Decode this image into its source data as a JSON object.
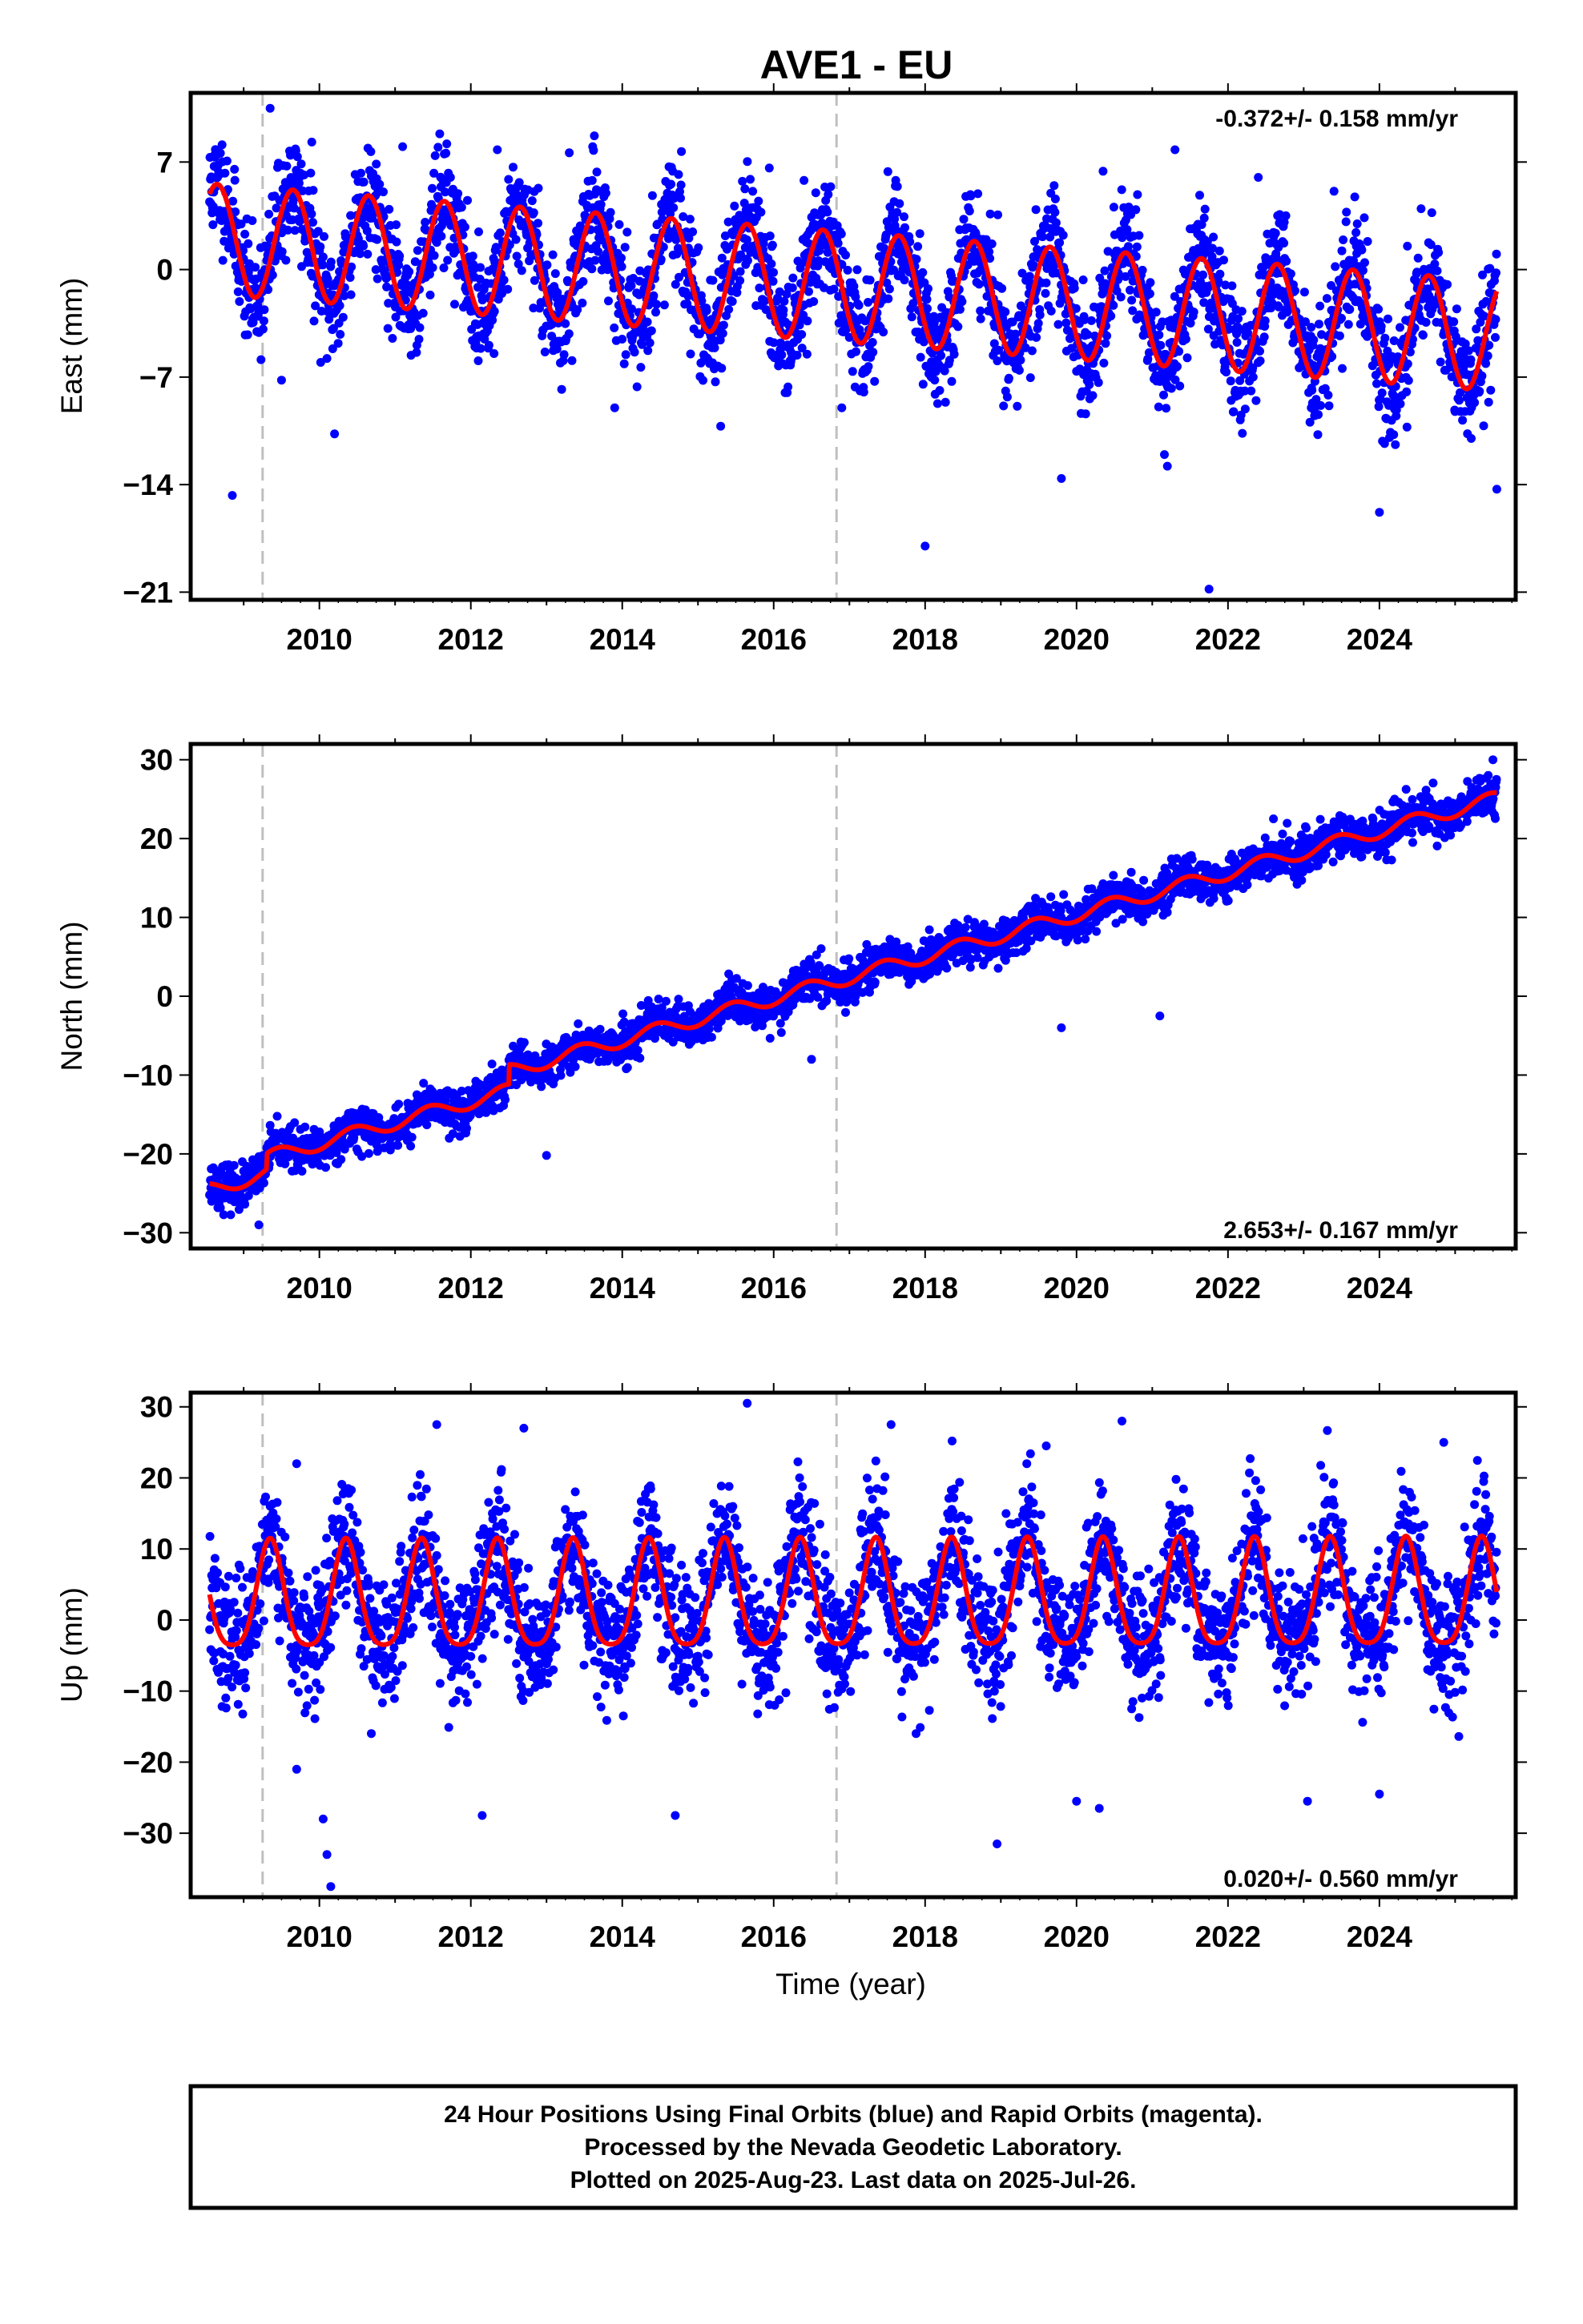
{
  "title": "AVE1 - EU",
  "xlabel": "Time (year)",
  "caption": [
    "24 Hour Positions Using Final Orbits (blue) and Rapid Orbits (magenta).",
    "Processed by the Nevada Geodetic Laboratory.",
    "Plotted on 2025-Aug-23. Last data on 2025-Jul-26."
  ],
  "colors": {
    "points": "#0000ff",
    "model": "#ff0000",
    "event_lines": "#bfbfbf",
    "frame": "#000000"
  },
  "chart_data": [
    {
      "type": "scatter",
      "name": "east",
      "ylabel": "East (mm)",
      "rate_text": "-0.372+/- 0.158 mm/yr",
      "rate_position": "top-right",
      "xlim": [
        2008.3,
        2025.8
      ],
      "ylim": [
        -21.5,
        11.5
      ],
      "xticks": [
        2010,
        2012,
        2014,
        2016,
        2018,
        2020,
        2022,
        2024
      ],
      "yticks": [
        7,
        0,
        -7,
        -14,
        -21
      ],
      "ytick_labels": [
        "7",
        "0",
        "−7",
        "−14",
        "−21"
      ],
      "event_lines": [
        2009.25,
        2016.83
      ],
      "model": {
        "start": 2008.55,
        "end": 2025.55,
        "offset": 2.0,
        "rate": -0.372,
        "annual_amplitude": 3.6,
        "annual_phase": 2008.65,
        "semiannual_amplitude": 0.0,
        "jumps": []
      },
      "noise": {
        "sigma": 1.8,
        "seed": 11
      },
      "outliers": [
        [
          2008.85,
          -14.7
        ],
        [
          2010.2,
          -10.7
        ],
        [
          2013.9,
          -9.0
        ],
        [
          2015.3,
          -10.2
        ],
        [
          2018.0,
          -18.0
        ],
        [
          2019.8,
          -13.6
        ],
        [
          2021.2,
          -12.8
        ],
        [
          2021.75,
          -20.8
        ],
        [
          2024.0,
          -15.8
        ],
        [
          2025.55,
          -14.3
        ],
        [
          2009.35,
          10.5
        ],
        [
          2009.9,
          8.3
        ],
        [
          2011.1,
          8.0
        ],
        [
          2012.35,
          7.8
        ],
        [
          2013.3,
          7.6
        ],
        [
          2016.4,
          5.8
        ],
        [
          2020.35,
          6.4
        ],
        [
          2021.3,
          7.8
        ],
        [
          2022.4,
          6.0
        ],
        [
          2023.4,
          5.1
        ],
        [
          2009.5,
          -7.2
        ],
        [
          2013.2,
          -7.8
        ],
        [
          2016.9,
          -9.0
        ],
        [
          2023.1,
          -9.0
        ]
      ]
    },
    {
      "type": "scatter",
      "name": "north",
      "ylabel": "North (mm)",
      "rate_text": "2.653+/- 0.167 mm/yr",
      "rate_position": "bottom-right",
      "xlim": [
        2008.3,
        2025.8
      ],
      "ylim": [
        -32,
        32
      ],
      "xticks": [
        2010,
        2012,
        2014,
        2016,
        2018,
        2020,
        2022,
        2024
      ],
      "yticks": [
        30,
        20,
        10,
        0,
        -10,
        -20,
        -30
      ],
      "ytick_labels": [
        "30",
        "20",
        "10",
        "0",
        "−10",
        "−20",
        "−30"
      ],
      "event_lines": [
        2009.25,
        2016.83
      ],
      "model": {
        "start": 2008.55,
        "end": 2025.55,
        "offset": -24.5,
        "rate": 2.653,
        "annual_amplitude": 0.9,
        "annual_phase": 2008.45,
        "semiannual_amplitude": 0.0,
        "jumps": [
          [
            2009.3,
            2.0
          ],
          [
            2012.5,
            2.5
          ]
        ]
      },
      "noise": {
        "sigma": 1.3,
        "seed": 23
      },
      "outliers": [
        [
          2009.2,
          -29.0
        ],
        [
          2013.0,
          -20.2
        ],
        [
          2019.8,
          -4.0
        ],
        [
          2021.1,
          -2.5
        ],
        [
          2022.6,
          22.5
        ],
        [
          2025.5,
          30.0
        ],
        [
          2016.5,
          -8.0
        ],
        [
          2024.2,
          25.0
        ]
      ]
    },
    {
      "type": "scatter",
      "name": "up",
      "ylabel": "Up (mm)",
      "rate_text": "0.020+/- 0.560 mm/yr",
      "rate_position": "bottom-right",
      "xlim": [
        2008.3,
        2025.8
      ],
      "ylim": [
        -39,
        32
      ],
      "xticks": [
        2010,
        2012,
        2014,
        2016,
        2018,
        2020,
        2022,
        2024
      ],
      "yticks": [
        30,
        20,
        10,
        0,
        -10,
        -20,
        -30
      ],
      "ytick_labels": [
        "30",
        "20",
        "10",
        "0",
        "−10",
        "−20",
        "−30"
      ],
      "event_lines": [
        2009.25,
        2016.83
      ],
      "model": {
        "start": 2008.55,
        "end": 2025.55,
        "offset": 2.5,
        "rate": 0.02,
        "annual_amplitude": 7.5,
        "annual_phase": 2008.35,
        "semiannual_amplitude": 1.5,
        "jumps": []
      },
      "noise": {
        "sigma": 4.5,
        "seed": 37
      },
      "outliers": [
        [
          2010.15,
          -37.5
        ],
        [
          2010.1,
          -33.0
        ],
        [
          2010.05,
          -28.0
        ],
        [
          2009.7,
          -21.0
        ],
        [
          2012.15,
          -27.5
        ],
        [
          2014.7,
          -27.5
        ],
        [
          2018.95,
          -31.5
        ],
        [
          2020.0,
          -25.5
        ],
        [
          2020.3,
          -26.5
        ],
        [
          2023.05,
          -25.5
        ],
        [
          2024.0,
          -24.5
        ],
        [
          2015.65,
          30.5
        ],
        [
          2011.55,
          27.5
        ],
        [
          2012.7,
          27.0
        ],
        [
          2017.55,
          27.5
        ],
        [
          2020.6,
          28.0
        ],
        [
          2024.85,
          25.0
        ],
        [
          2019.6,
          24.5
        ],
        [
          2009.7,
          22.0
        ]
      ]
    }
  ]
}
